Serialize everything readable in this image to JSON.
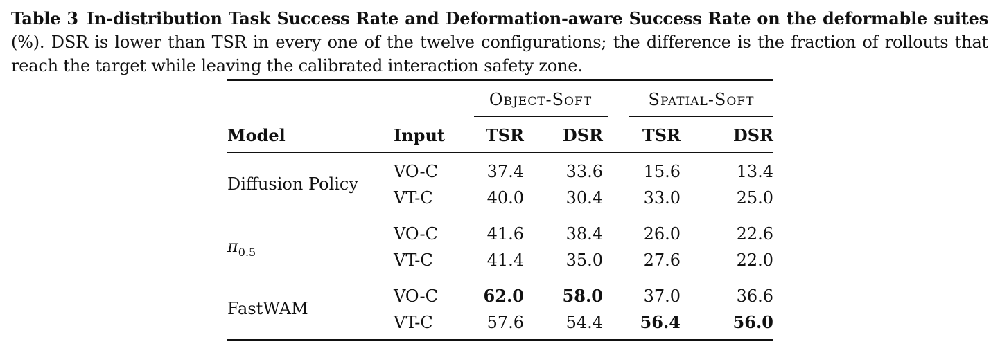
{
  "caption": {
    "table_label": "Table 3",
    "title": "In-distribution Task Success Rate and Deformation-aware Success Rate on the deformable suites",
    "text": "(%). DSR is lower than TSR in every one of the twelve configurations; the difference is the fraction of rollouts that reach the target while leaving the calibrated interaction safety zone."
  },
  "table": {
    "group_headers": [
      "Object-Soft",
      "Spatial-Soft"
    ],
    "column_headers": {
      "model": "Model",
      "input": "Input",
      "tsr1": "TSR",
      "dsr1": "DSR",
      "tsr2": "TSR",
      "dsr2": "DSR"
    },
    "models": [
      {
        "name": "Diffusion Policy",
        "rows": [
          {
            "input": "VO-C",
            "values": [
              "37.4",
              "33.6",
              "15.6",
              "13.4"
            ]
          },
          {
            "input": "VT-C",
            "values": [
              "40.0",
              "30.4",
              "33.0",
              "25.0"
            ]
          }
        ]
      },
      {
        "name": "π",
        "name_sub": "0.5",
        "rows": [
          {
            "input": "VO-C",
            "values": [
              "41.6",
              "38.4",
              "26.0",
              "22.6"
            ]
          },
          {
            "input": "VT-C",
            "values": [
              "41.4",
              "35.0",
              "27.6",
              "22.0"
            ]
          }
        ]
      },
      {
        "name": "FastWAM",
        "rows": [
          {
            "input": "VO-C",
            "values": [
              "62.0",
              "58.0",
              "37.0",
              "36.6"
            ]
          },
          {
            "input": "VT-C",
            "values": [
              "57.6",
              "54.4",
              "56.4",
              "56.0"
            ]
          }
        ]
      }
    ]
  }
}
